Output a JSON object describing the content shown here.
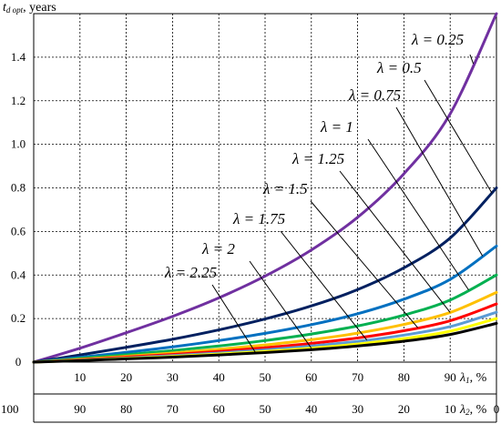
{
  "chart_data": {
    "type": "line",
    "ylabel": "t",
    "ylabel_subscript": "d opt",
    "ylabel_unit": ", years",
    "x1label": "λ",
    "x1label_subscript": "1",
    "x1label_unit": ", %",
    "x2label": "λ",
    "x2label_subscript": "2",
    "x2label_unit": ", %",
    "xlim": [
      0,
      100
    ],
    "ylim": [
      0,
      1.6
    ],
    "x1_ticks": [
      "10",
      "20",
      "30",
      "40",
      "50",
      "60",
      "70",
      "80",
      "90"
    ],
    "x2_ticks": [
      "100",
      "90",
      "80",
      "70",
      "60",
      "50",
      "40",
      "30",
      "20",
      "10",
      "0"
    ],
    "y_ticks": [
      "0",
      "0.2",
      "0.4",
      "0.6",
      "0.8",
      "1.0",
      "1.2",
      "1.4"
    ],
    "grid": true,
    "x": [
      0,
      10,
      20,
      30,
      40,
      50,
      60,
      70,
      80,
      90,
      100
    ],
    "series": [
      {
        "name": "λ = 0.25",
        "color": "#7030a0",
        "values": [
          0,
          0.064,
          0.135,
          0.21,
          0.295,
          0.395,
          0.515,
          0.665,
          0.865,
          1.14,
          1.6
        ]
      },
      {
        "name": "λ = 0.5",
        "color": "#002060",
        "values": [
          0,
          0.033,
          0.068,
          0.105,
          0.148,
          0.198,
          0.258,
          0.333,
          0.433,
          0.57,
          0.8
        ]
      },
      {
        "name": "λ = 0.75",
        "color": "#0070c0",
        "values": [
          0,
          0.022,
          0.045,
          0.07,
          0.099,
          0.132,
          0.172,
          0.222,
          0.289,
          0.38,
          0.533
        ]
      },
      {
        "name": "λ = 1",
        "color": "#00b050",
        "values": [
          0,
          0.017,
          0.034,
          0.053,
          0.074,
          0.099,
          0.129,
          0.166,
          0.216,
          0.285,
          0.4
        ]
      },
      {
        "name": "λ = 1.25",
        "color": "#ffc000",
        "values": [
          0,
          0.013,
          0.027,
          0.042,
          0.059,
          0.079,
          0.103,
          0.133,
          0.173,
          0.228,
          0.32
        ]
      },
      {
        "name": "λ = 1.5",
        "color": "#ff0000",
        "values": [
          0,
          0.011,
          0.023,
          0.035,
          0.049,
          0.066,
          0.086,
          0.111,
          0.144,
          0.19,
          0.267
        ]
      },
      {
        "name": "λ = 1.75",
        "color": "#5b9bd5",
        "values": [
          0,
          0.009,
          0.019,
          0.03,
          0.042,
          0.056,
          0.074,
          0.095,
          0.124,
          0.163,
          0.229
        ]
      },
      {
        "name": "λ = 2",
        "color": "#ffff00",
        "values": [
          0,
          0.008,
          0.017,
          0.026,
          0.037,
          0.049,
          0.064,
          0.083,
          0.108,
          0.142,
          0.2
        ]
      },
      {
        "name": "λ = 2.25",
        "color": "#000000",
        "values": [
          0,
          0.007,
          0.015,
          0.023,
          0.033,
          0.044,
          0.057,
          0.074,
          0.096,
          0.127,
          0.178
        ]
      }
    ],
    "annotations": [
      {
        "label": "λ = 0.25",
        "series": 0,
        "at_x": 95
      },
      {
        "label": "λ = 0.5",
        "series": 1,
        "at_x": 99
      },
      {
        "label": "λ = 0.75",
        "series": 2,
        "at_x": 97
      },
      {
        "label": "λ = 1",
        "series": 3,
        "at_x": 94
      },
      {
        "label": "λ = 1.25",
        "series": 4,
        "at_x": 90
      },
      {
        "label": "λ = 1.5",
        "series": 5,
        "at_x": 83
      },
      {
        "label": "λ = 1.75",
        "series": 6,
        "at_x": 72
      },
      {
        "label": "λ = 2",
        "series": 7,
        "at_x": 60
      },
      {
        "label": "λ = 2.25",
        "series": 8,
        "at_x": 48
      }
    ]
  }
}
